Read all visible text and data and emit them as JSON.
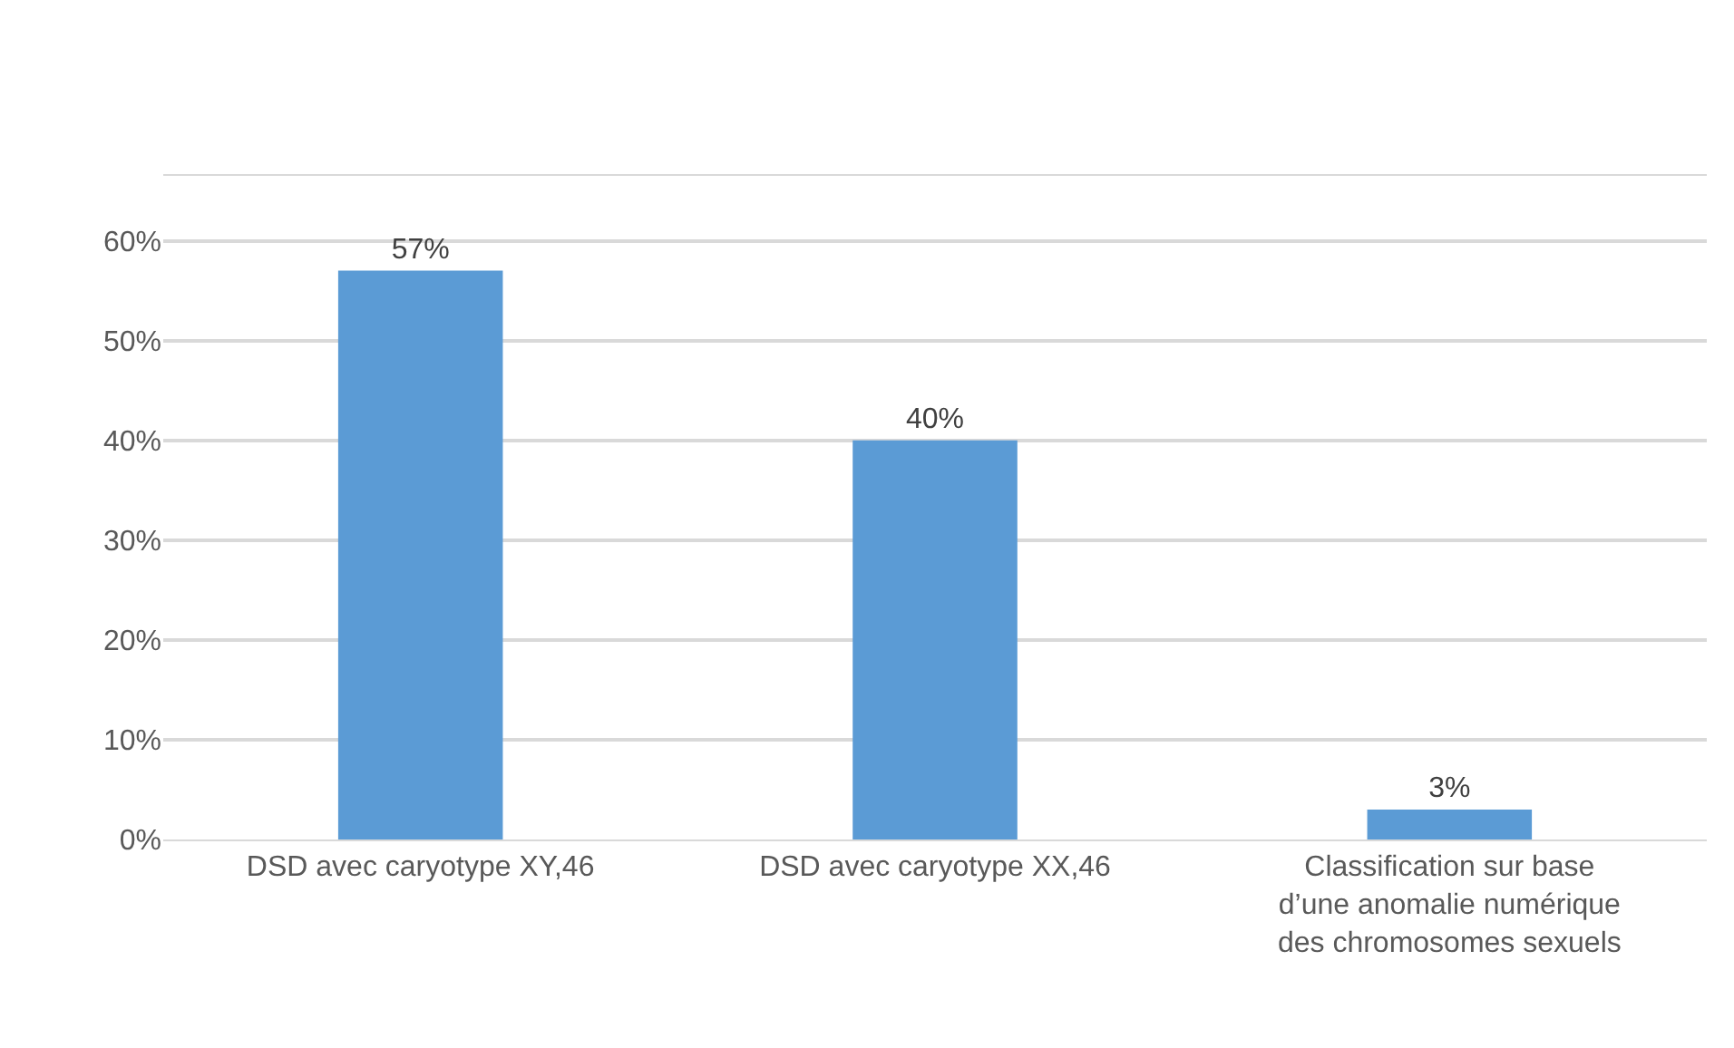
{
  "chart_data": {
    "type": "bar",
    "categories": [
      "DSD avec caryotype XY,46",
      "DSD avec caryotype XX,46",
      "Classification sur base\nd’une anomalie numérique\ndes chromosomes sexuels"
    ],
    "values": [
      57,
      40,
      3
    ],
    "color": "#5b9bd5",
    "value_labels": [
      "57%",
      "40%",
      "3%"
    ],
    "ylim": [
      0,
      66.5
    ],
    "yticks": [
      {
        "value": 0,
        "label": "0%"
      },
      {
        "value": 10,
        "label": "10%"
      },
      {
        "value": 20,
        "label": "20%"
      },
      {
        "value": 30,
        "label": "30%"
      },
      {
        "value": 40,
        "label": "40%"
      },
      {
        "value": 50,
        "label": "50%"
      },
      {
        "value": 60,
        "label": "60%"
      },
      {
        "value": 66.5,
        "label": null
      }
    ],
    "grid": "y",
    "legend": false
  }
}
